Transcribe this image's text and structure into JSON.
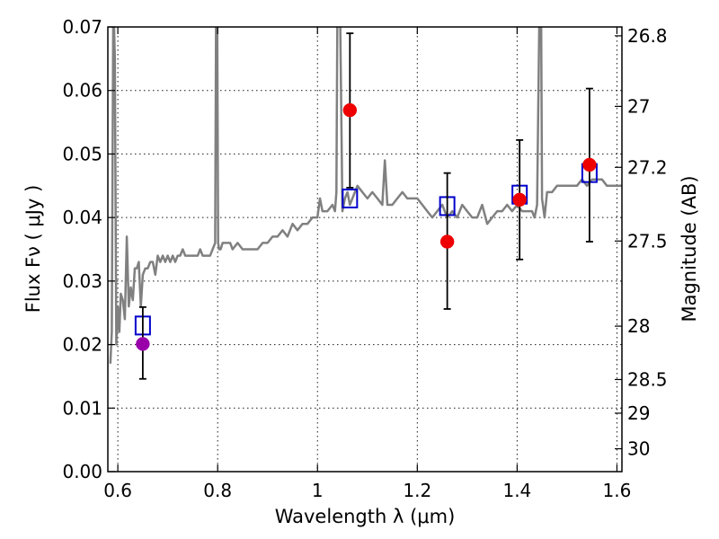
{
  "chart_data": {
    "type": "scatter",
    "xlabel": "Wavelength  λ (μm)",
    "ylabel": "Flux  Fν  ( μJy )",
    "y2label": "Magnitude (AB)",
    "xlim": [
      0.58,
      1.61
    ],
    "ylim": [
      0.0,
      0.07
    ],
    "grid": true,
    "x_ticks": [
      0.6,
      0.8,
      1.0,
      1.2,
      1.4,
      1.6
    ],
    "x_tick_labels": [
      "0.6",
      "0.8",
      "1",
      "1.2",
      "1.4",
      "1.6"
    ],
    "y_ticks": [
      0.0,
      0.01,
      0.02,
      0.03,
      0.04,
      0.05,
      0.06,
      0.07
    ],
    "y_tick_labels": [
      "0.00",
      "0.01",
      "0.02",
      "0.03",
      "0.04",
      "0.05",
      "0.06",
      "0.07"
    ],
    "mag_ticks": [
      {
        "label": "26.8",
        "flux": 0.0686
      },
      {
        "label": "27",
        "flux": 0.0575
      },
      {
        "label": "27.2",
        "flux": 0.0479
      },
      {
        "label": "27.5",
        "flux": 0.0363
      },
      {
        "label": "28",
        "flux": 0.0229
      },
      {
        "label": "28.5",
        "flux": 0.0145
      },
      {
        "label": "29",
        "flux": 0.0092
      },
      {
        "label": "30",
        "flux": 0.0036
      }
    ],
    "model_spectrum": {
      "color": "#808080",
      "x": [
        0.585,
        0.588,
        0.591,
        0.594,
        0.597,
        0.6,
        0.603,
        0.606,
        0.61,
        0.614,
        0.618,
        0.622,
        0.626,
        0.63,
        0.634,
        0.638,
        0.642,
        0.646,
        0.65,
        0.655,
        0.66,
        0.665,
        0.67,
        0.675,
        0.68,
        0.685,
        0.69,
        0.695,
        0.7,
        0.705,
        0.71,
        0.715,
        0.72,
        0.725,
        0.73,
        0.735,
        0.74,
        0.745,
        0.75,
        0.755,
        0.76,
        0.765,
        0.77,
        0.775,
        0.78,
        0.785,
        0.79,
        0.795,
        0.797,
        0.799,
        0.801,
        0.803,
        0.806,
        0.81,
        0.815,
        0.82,
        0.825,
        0.83,
        0.84,
        0.85,
        0.86,
        0.87,
        0.88,
        0.89,
        0.9,
        0.91,
        0.92,
        0.93,
        0.94,
        0.95,
        0.96,
        0.97,
        0.98,
        0.99,
        1.0,
        1.005,
        1.01,
        1.02,
        1.03,
        1.035,
        1.038,
        1.04,
        1.045,
        1.05,
        1.055,
        1.06,
        1.065,
        1.07,
        1.075,
        1.08,
        1.09,
        1.1,
        1.11,
        1.12,
        1.13,
        1.135,
        1.14,
        1.15,
        1.16,
        1.17,
        1.18,
        1.19,
        1.2,
        1.21,
        1.22,
        1.23,
        1.24,
        1.25,
        1.26,
        1.27,
        1.28,
        1.29,
        1.3,
        1.31,
        1.32,
        1.33,
        1.34,
        1.35,
        1.36,
        1.37,
        1.38,
        1.39,
        1.4,
        1.41,
        1.42,
        1.43,
        1.435,
        1.44,
        1.445,
        1.448,
        1.45,
        1.455,
        1.46,
        1.47,
        1.48,
        1.49,
        1.5,
        1.51,
        1.52,
        1.53,
        1.54,
        1.55,
        1.56,
        1.57,
        1.58,
        1.59,
        1.6,
        1.61
      ],
      "y": [
        0.017,
        0.022,
        0.075,
        0.065,
        0.02,
        0.026,
        0.022,
        0.028,
        0.027,
        0.024,
        0.037,
        0.026,
        0.029,
        0.027,
        0.032,
        0.032,
        0.033,
        0.026,
        0.031,
        0.032,
        0.032,
        0.033,
        0.033,
        0.031,
        0.034,
        0.033,
        0.034,
        0.033,
        0.034,
        0.033,
        0.034,
        0.033,
        0.034,
        0.034,
        0.035,
        0.034,
        0.034,
        0.034,
        0.034,
        0.034,
        0.034,
        0.035,
        0.034,
        0.034,
        0.034,
        0.034,
        0.035,
        0.036,
        0.075,
        0.075,
        0.036,
        0.035,
        0.035,
        0.036,
        0.036,
        0.036,
        0.036,
        0.035,
        0.036,
        0.035,
        0.035,
        0.035,
        0.035,
        0.036,
        0.036,
        0.037,
        0.037,
        0.038,
        0.037,
        0.039,
        0.038,
        0.039,
        0.039,
        0.04,
        0.04,
        0.043,
        0.041,
        0.041,
        0.042,
        0.041,
        0.044,
        0.075,
        0.075,
        0.041,
        0.043,
        0.044,
        0.042,
        0.043,
        0.044,
        0.045,
        0.044,
        0.043,
        0.044,
        0.043,
        0.042,
        0.049,
        0.042,
        0.042,
        0.043,
        0.044,
        0.043,
        0.043,
        0.043,
        0.042,
        0.041,
        0.04,
        0.041,
        0.042,
        0.04,
        0.041,
        0.04,
        0.042,
        0.041,
        0.04,
        0.04,
        0.042,
        0.039,
        0.04,
        0.041,
        0.041,
        0.042,
        0.041,
        0.042,
        0.041,
        0.041,
        0.041,
        0.04,
        0.042,
        0.075,
        0.075,
        0.043,
        0.04,
        0.044,
        0.044,
        0.045,
        0.045,
        0.045,
        0.045,
        0.045,
        0.046,
        0.045,
        0.046,
        0.046,
        0.046,
        0.045,
        0.045,
        0.045,
        0.045
      ]
    },
    "series": [
      {
        "marker": "square-open",
        "color": "#0000cc",
        "x": [
          0.65,
          1.065,
          1.26,
          1.405,
          1.545
        ],
        "y": [
          0.023,
          0.043,
          0.0418,
          0.0436,
          0.047
        ]
      },
      {
        "marker": "circle-filled",
        "color": "#ee0000",
        "x": [
          1.065,
          1.26,
          1.405,
          1.545
        ],
        "y": [
          0.0569,
          0.0362,
          0.0428,
          0.0483
        ],
        "yerr_low": [
          0.0122,
          0.0106,
          0.0094,
          0.0121
        ],
        "yerr_high": [
          0.0121,
          0.0108,
          0.0094,
          0.012
        ]
      },
      {
        "marker": "circle-filled",
        "color": "#9900aa",
        "x": [
          0.65
        ],
        "y": [
          0.0201
        ],
        "yerr_low": [
          0.0055
        ],
        "yerr_high": [
          0.0058
        ]
      }
    ]
  }
}
